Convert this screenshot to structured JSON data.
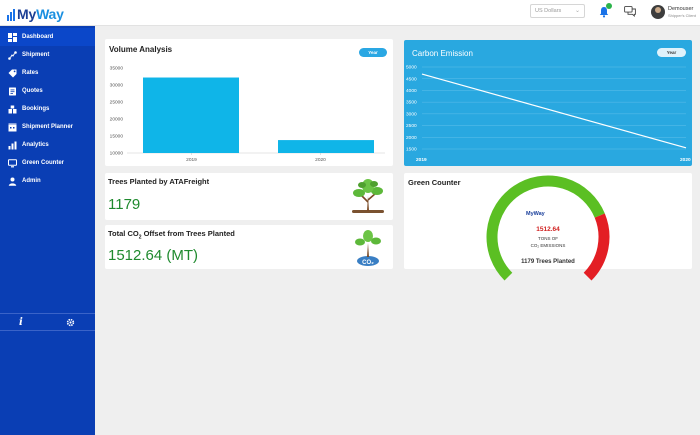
{
  "app": {
    "logo_part1": "My",
    "logo_part2": "Way"
  },
  "header": {
    "currency": "US Dollars",
    "user_name": "Demouser",
    "user_role": "Shipper's Client"
  },
  "sidebar": {
    "items": [
      {
        "label": "Dashboard",
        "icon": "dashboard-icon"
      },
      {
        "label": "Shipment",
        "icon": "shipment-icon"
      },
      {
        "label": "Rates",
        "icon": "rates-tag-icon"
      },
      {
        "label": "Quotes",
        "icon": "quotes-icon"
      },
      {
        "label": "Bookings",
        "icon": "bookings-icon"
      },
      {
        "label": "Shipment Planner",
        "icon": "planner-icon"
      },
      {
        "label": "Analytics",
        "icon": "analytics-icon"
      },
      {
        "label": "Green Counter",
        "icon": "monitor-icon"
      },
      {
        "label": "Admin",
        "icon": "admin-user-icon"
      }
    ]
  },
  "volume_analysis": {
    "title": "Volume Analysis",
    "filter": "Year"
  },
  "carbon_emission": {
    "title": "Carbon Emission",
    "filter": "Year"
  },
  "trees_planted": {
    "title": "Trees Planted by ATAFreight",
    "value": "1179"
  },
  "co2_offset": {
    "title_prefix": "Total CO",
    "title_sub": "2",
    "title_suffix": " Offset from Trees Planted",
    "value": "1512.64 (MT)"
  },
  "green_counter": {
    "title": "Green Counter",
    "logo": "MyWay",
    "value": "1512.64",
    "unit_line1": "TONS OF",
    "unit_line2": "CO₂ EMISSIONS",
    "trees_label": "1179 Trees Planted",
    "gauge_green_fraction": 0.75
  },
  "chart_data": [
    {
      "type": "bar",
      "title": "Volume Analysis",
      "categories": [
        "2019",
        "2020"
      ],
      "values": [
        32200,
        13800
      ],
      "ylim": [
        10000,
        35000
      ],
      "yticks": [
        "10000",
        "15000",
        "20000",
        "25000",
        "30000",
        "35000"
      ],
      "xticks": [
        "2019",
        "2020"
      ],
      "color": "#0fb5e8",
      "grid": false
    },
    {
      "type": "line",
      "title": "Carbon Emission",
      "x": [
        "2019",
        "2020"
      ],
      "values": [
        4700,
        1550
      ],
      "ylim": [
        1500,
        5000
      ],
      "yticks": [
        "1500",
        "2000",
        "2500",
        "3000",
        "3500",
        "4000",
        "4500",
        "5000"
      ],
      "xticks": [
        "2019",
        "2020"
      ],
      "background": "#29a8e0",
      "line_color": "#ffffff",
      "grid": true
    }
  ]
}
